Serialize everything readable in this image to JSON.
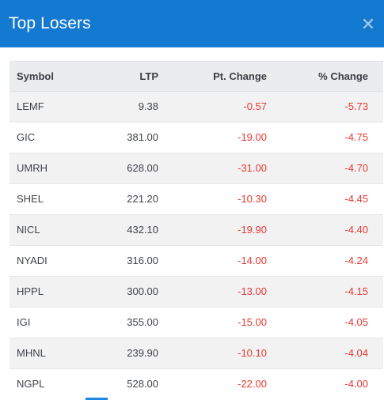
{
  "header": {
    "title": "Top Losers",
    "close_icon": "close-icon",
    "close_glyph": "✕",
    "color": "#1479d0"
  },
  "table": {
    "columns": [
      "Symbol",
      "LTP",
      "Pt. Change",
      "% Change"
    ],
    "rows": [
      {
        "symbol": "LEMF",
        "ltp": "9.38",
        "pt_change": "-0.57",
        "pct_change": "-5.73"
      },
      {
        "symbol": "GIC",
        "ltp": "381.00",
        "pt_change": "-19.00",
        "pct_change": "-4.75"
      },
      {
        "symbol": "UMRH",
        "ltp": "628.00",
        "pt_change": "-31.00",
        "pct_change": "-4.70"
      },
      {
        "symbol": "SHEL",
        "ltp": "221.20",
        "pt_change": "-10.30",
        "pct_change": "-4.45"
      },
      {
        "symbol": "NICL",
        "ltp": "432.10",
        "pt_change": "-19.90",
        "pct_change": "-4.40"
      },
      {
        "symbol": "NYADI",
        "ltp": "316.00",
        "pt_change": "-14.00",
        "pct_change": "-4.24"
      },
      {
        "symbol": "HPPL",
        "ltp": "300.00",
        "pt_change": "-13.00",
        "pct_change": "-4.15"
      },
      {
        "symbol": "IGI",
        "ltp": "355.00",
        "pt_change": "-15.00",
        "pct_change": "-4.05"
      },
      {
        "symbol": "MHNL",
        "ltp": "239.90",
        "pt_change": "-10.10",
        "pct_change": "-4.04"
      },
      {
        "symbol": "NGPL",
        "ltp": "528.00",
        "pt_change": "-22.00",
        "pct_change": "-4.00"
      }
    ],
    "negative_color": "#e53935"
  }
}
